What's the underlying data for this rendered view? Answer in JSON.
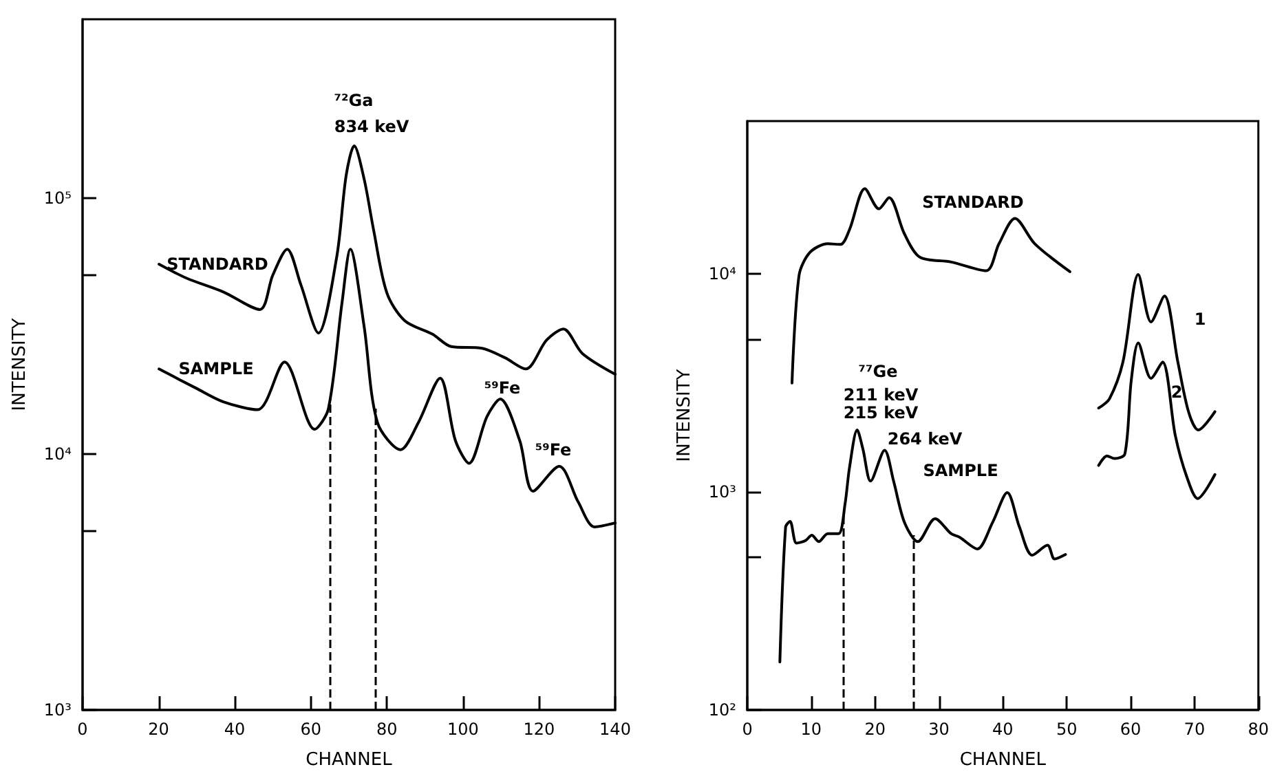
{
  "chart_data": [
    {
      "type": "line",
      "xlabel": "CHANNEL",
      "ylabel": "INTENSITY",
      "log": "y",
      "marker": "none",
      "line_style": "solid",
      "xlim": [
        0,
        140
      ],
      "xticks": [
        0,
        20,
        40,
        60,
        80,
        100,
        120,
        140
      ],
      "ylim": [
        1000,
        500000
      ],
      "yticks": [
        {
          "value": 1000,
          "label": "10³"
        },
        {
          "value": 5000,
          "label": null
        },
        {
          "value": 10000,
          "label": "10⁴"
        },
        {
          "value": 50000,
          "label": null
        },
        {
          "value": 100000,
          "label": "10⁵"
        }
      ],
      "series": [
        {
          "name": "STANDARD",
          "color": "#000000",
          "x": [
            20.1,
            27.3,
            37,
            46.6,
            50,
            53.8,
            57.4,
            62,
            66.8,
            69.3,
            71.4,
            74,
            76.5,
            80,
            84.7,
            92,
            96.9,
            105,
            111,
            116.5,
            122,
            126.4,
            131.4,
            140
          ],
          "values": [
            55200,
            48700,
            43000,
            36700,
            50000,
            63200,
            45800,
            29700,
            58800,
            123000,
            160000,
            119000,
            75200,
            42600,
            33200,
            29400,
            26300,
            25900,
            23800,
            21500,
            27900,
            30800,
            24700,
            20500
          ]
        },
        {
          "name": "SAMPLE",
          "color": "#000000",
          "x": [
            20.1,
            29.8,
            37,
            46,
            53.1,
            61,
            64.6,
            68.2,
            70.4,
            74,
            77.5,
            83.6,
            88.3,
            94,
            98,
            101.6,
            106.3,
            109.8,
            114.9,
            118.4,
            125.3,
            130.3,
            134.6,
            140
          ],
          "values": [
            21500,
            18100,
            16000,
            14900,
            22900,
            12500,
            15000,
            39000,
            63200,
            31600,
            13300,
            10400,
            13300,
            19800,
            11300,
            9200,
            14000,
            16400,
            11300,
            7160,
            8960,
            6490,
            5190,
            5380
          ]
        }
      ],
      "ref_lines": [
        {
          "axis": "x",
          "value": 65,
          "line_style": "dashed"
        },
        {
          "axis": "x",
          "value": 77,
          "line_style": "dashed"
        }
      ],
      "annotations": [
        "⁷²Ga",
        "834 keV",
        "⁵⁹Fe",
        "⁵⁹Fe"
      ]
    },
    {
      "type": "line",
      "xlabel": "CHANNEL",
      "ylabel": "INTENSITY",
      "log": "y",
      "marker": "none",
      "line_style": "solid",
      "xlim": [
        0,
        80
      ],
      "xticks": [
        0,
        10,
        20,
        30,
        40,
        50,
        60,
        70,
        80
      ],
      "ylim": [
        100,
        50000
      ],
      "yticks": [
        {
          "value": 100,
          "label": "10²"
        },
        {
          "value": 500,
          "label": null
        },
        {
          "value": 1000,
          "label": "10³"
        },
        {
          "value": 5000,
          "label": null
        },
        {
          "value": 10000,
          "label": "10⁴"
        }
      ],
      "series": [
        {
          "name": "STANDARD",
          "color": "#000000",
          "x": [
            7,
            8.1,
            9.8,
            12.6,
            14.6,
            16,
            18.4,
            20.6,
            22.2,
            24.6,
            27,
            31.9,
            37.4,
            39.4,
            41.9,
            45,
            50.5
          ],
          "values": [
            3150,
            9800,
            12500,
            13700,
            13600,
            15900,
            24500,
            19800,
            22300,
            15200,
            11900,
            11300,
            10300,
            13700,
            17900,
            13700,
            10200
          ]
        },
        {
          "name": "SAMPLE",
          "color": "#000000",
          "x": [
            5.1,
            6,
            6.7,
            7.7,
            9.1,
            10.1,
            11.2,
            12.6,
            14.3,
            15.3,
            16,
            17.2,
            18.1,
            19.3,
            21.5,
            22.9,
            24.6,
            26.7,
            29.4,
            31.9,
            33.2,
            36,
            38.4,
            40.7,
            42.6,
            44.6,
            47,
            48.1,
            49.8
          ],
          "values": [
            166,
            690,
            731,
            582,
            597,
            632,
            591,
            643,
            643,
            878,
            1290,
            1920,
            1570,
            1120,
            1550,
            1120,
            724,
            591,
            753,
            643,
            620,
            547,
            724,
            991,
            690,
            512,
            569,
            492,
            516
          ]
        },
        {
          "name": "1",
          "color": "#000000",
          "x": [
            55,
            56.7,
            58.8,
            61.2,
            63.2,
            65.3,
            67.4,
            69.1,
            70.6,
            73.2
          ],
          "values": [
            2420,
            2670,
            3930,
            9910,
            6000,
            7890,
            3930,
            2310,
            1920,
            2330
          ]
        },
        {
          "name": "2",
          "color": "#000000",
          "x": [
            55,
            56.3,
            57.5,
            59.1,
            60.1,
            61.2,
            63.2,
            65,
            67,
            68.8,
            70.5,
            73.2
          ],
          "values": [
            1320,
            1460,
            1420,
            1490,
            3230,
            4810,
            3310,
            3930,
            1810,
            1170,
            931,
            1200
          ]
        }
      ],
      "ref_lines": [
        {
          "axis": "x",
          "value": 15,
          "line_style": "dashed"
        },
        {
          "axis": "x",
          "value": 26,
          "line_style": "dashed"
        }
      ],
      "annotations": [
        "⁷⁷Ge",
        "211 keV",
        "215 keV",
        "264 keV"
      ]
    }
  ]
}
